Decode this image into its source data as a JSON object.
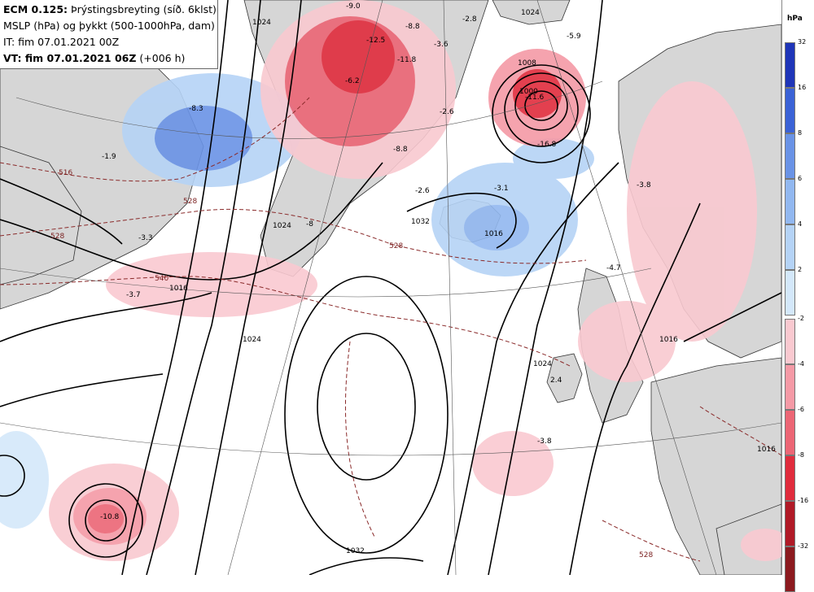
{
  "header": {
    "line1_model": "ECM 0.125:",
    "line1_rest": "Þrýstingsbreyting (síð. 6klst)",
    "line2": "MSLP (hPa) og þykkt (500-1000hPa, dam)",
    "line3": "IT: fim 07.01.2021 00Z",
    "line4_bold": "VT: fim 07.01.2021 06Z",
    "line4_rest": "(+006 h)"
  },
  "legend": {
    "unit": "hPa",
    "negative_ticks": [
      "32",
      "16",
      "8",
      "6",
      "4",
      "2"
    ],
    "positive_ticks": [
      "-2",
      "-4",
      "-6",
      "-8",
      "-16",
      "-32"
    ],
    "negative_colors": [
      "#1f35b8",
      "#3b62d6",
      "#6a93e6",
      "#92b8f0",
      "#b5d3f6",
      "#d4e8fa"
    ],
    "positive_colors": [
      "#f9c9d0",
      "#f59aa6",
      "#ec6675",
      "#e02c3d",
      "#b01a27",
      "#8c1a1f"
    ]
  },
  "map_labels": {
    "isobars": [
      "1024",
      "1024",
      "1016",
      "1024",
      "1024",
      "1032",
      "1016",
      "1024",
      "1032",
      "1008",
      "1016",
      "1000",
      "1016"
    ],
    "thickness": [
      "516",
      "528",
      "540",
      "528",
      "528",
      "528"
    ],
    "pressure_change": [
      "-9.0",
      "-12.5",
      "-11.8",
      "-6.2",
      "-8.8",
      "-3.6",
      "-2.6",
      "-2.8",
      "-5.9",
      "-11.6",
      "-16.8",
      "-3.1",
      "-2.6",
      "-3.8",
      "-4.7",
      "-8.3",
      "-3.7",
      "2.4",
      "-3.8",
      "-10.8",
      "-1.9",
      "-3.3",
      "-8",
      "-8.8"
    ]
  },
  "colors": {
    "land": "#d6d6d6",
    "isobar": "#000000",
    "thickness": "#8a2a2a"
  }
}
